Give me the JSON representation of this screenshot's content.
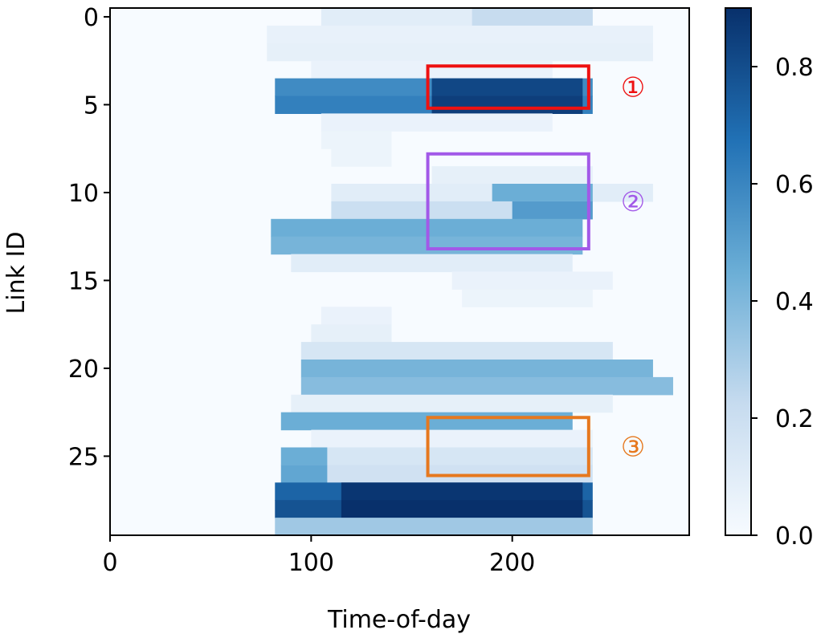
{
  "chart_data": {
    "type": "heatmap",
    "xlabel": "Time-of-day",
    "ylabel": "Link ID",
    "xlim": [
      0,
      288
    ],
    "ylim": [
      29.5,
      -0.5
    ],
    "x_ticks": [
      0,
      100,
      200
    ],
    "y_ticks": [
      0,
      5,
      10,
      15,
      20,
      25
    ],
    "colormap": "Blues",
    "colorbar": {
      "min": 0.0,
      "max": 0.9,
      "ticks": [
        0.0,
        0.2,
        0.4,
        0.6,
        0.8
      ],
      "tick_labels": [
        "0.0",
        "0.2",
        "0.4",
        "0.6",
        "0.8"
      ]
    },
    "links": 30,
    "bands": [
      {
        "row": 0,
        "x_start": 105,
        "x_end": 240,
        "value": 0.1
      },
      {
        "row": 0,
        "x_start": 180,
        "x_end": 240,
        "value": 0.22
      },
      {
        "row": 1,
        "x_start": 78,
        "x_end": 270,
        "value": 0.07
      },
      {
        "row": 2,
        "x_start": 78,
        "x_end": 270,
        "value": 0.08
      },
      {
        "row": 3,
        "x_start": 100,
        "x_end": 220,
        "value": 0.06
      },
      {
        "row": 4,
        "x_start": 82,
        "x_end": 240,
        "value": 0.58
      },
      {
        "row": 5,
        "x_start": 82,
        "x_end": 240,
        "value": 0.62
      },
      {
        "row": 4,
        "x_start": 160,
        "x_end": 235,
        "value": 0.82
      },
      {
        "row": 5,
        "x_start": 160,
        "x_end": 235,
        "value": 0.85
      },
      {
        "row": 6,
        "x_start": 105,
        "x_end": 220,
        "value": 0.06
      },
      {
        "row": 7,
        "x_start": 105,
        "x_end": 140,
        "value": 0.05
      },
      {
        "row": 8,
        "x_start": 110,
        "x_end": 140,
        "value": 0.05
      },
      {
        "row": 9,
        "x_start": 160,
        "x_end": 240,
        "value": 0.08
      },
      {
        "row": 10,
        "x_start": 110,
        "x_end": 270,
        "value": 0.1
      },
      {
        "row": 10,
        "x_start": 190,
        "x_end": 240,
        "value": 0.45
      },
      {
        "row": 11,
        "x_start": 110,
        "x_end": 240,
        "value": 0.2
      },
      {
        "row": 11,
        "x_start": 200,
        "x_end": 240,
        "value": 0.52
      },
      {
        "row": 12,
        "x_start": 80,
        "x_end": 235,
        "value": 0.45
      },
      {
        "row": 13,
        "x_start": 80,
        "x_end": 235,
        "value": 0.42
      },
      {
        "row": 14,
        "x_start": 90,
        "x_end": 230,
        "value": 0.1
      },
      {
        "row": 15,
        "x_start": 170,
        "x_end": 250,
        "value": 0.06
      },
      {
        "row": 16,
        "x_start": 175,
        "x_end": 240,
        "value": 0.05
      },
      {
        "row": 17,
        "x_start": 105,
        "x_end": 140,
        "value": 0.06
      },
      {
        "row": 18,
        "x_start": 100,
        "x_end": 140,
        "value": 0.08
      },
      {
        "row": 19,
        "x_start": 95,
        "x_end": 250,
        "value": 0.15
      },
      {
        "row": 20,
        "x_start": 95,
        "x_end": 270,
        "value": 0.42
      },
      {
        "row": 21,
        "x_start": 95,
        "x_end": 280,
        "value": 0.38
      },
      {
        "row": 22,
        "x_start": 90,
        "x_end": 250,
        "value": 0.08
      },
      {
        "row": 23,
        "x_start": 85,
        "x_end": 230,
        "value": 0.45
      },
      {
        "row": 24,
        "x_start": 100,
        "x_end": 240,
        "value": 0.06
      },
      {
        "row": 25,
        "x_start": 85,
        "x_end": 240,
        "value": 0.15
      },
      {
        "row": 25,
        "x_start": 85,
        "x_end": 108,
        "value": 0.45
      },
      {
        "row": 26,
        "x_start": 85,
        "x_end": 240,
        "value": 0.18
      },
      {
        "row": 26,
        "x_start": 85,
        "x_end": 108,
        "value": 0.48
      },
      {
        "row": 27,
        "x_start": 82,
        "x_end": 240,
        "value": 0.72
      },
      {
        "row": 28,
        "x_start": 82,
        "x_end": 240,
        "value": 0.78
      },
      {
        "row": 27,
        "x_start": 115,
        "x_end": 235,
        "value": 0.88
      },
      {
        "row": 28,
        "x_start": 115,
        "x_end": 235,
        "value": 0.9
      },
      {
        "row": 29,
        "x_start": 82,
        "x_end": 240,
        "value": 0.32
      }
    ],
    "annotations": [
      {
        "label": "①",
        "color": "#ee1111",
        "x_start": 158,
        "x_end": 238,
        "row_start": 3.3,
        "row_end": 5.7
      },
      {
        "label": "②",
        "color": "#a259e8",
        "x_start": 158,
        "x_end": 238,
        "row_start": 8.3,
        "row_end": 13.7
      },
      {
        "label": "③",
        "color": "#e6781e",
        "x_start": 158,
        "x_end": 238,
        "row_start": 23.3,
        "row_end": 26.6
      }
    ]
  }
}
